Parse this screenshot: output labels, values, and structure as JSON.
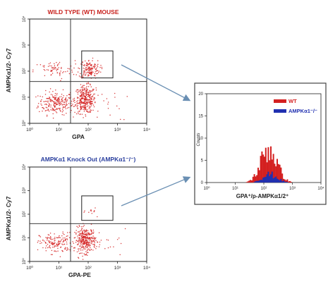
{
  "colors": {
    "wt": "#d42020",
    "ko": "#2030b0",
    "axis": "#222222",
    "arrow": "#6a8fb3",
    "title_wt": "#c8201c",
    "title_ko": "#2a3f9e"
  },
  "chart_data": [
    {
      "type": "scatter",
      "title": "WILD TYPE (WT) MOUSE",
      "xlabel": "GPA",
      "ylabel": "AMPKα1/2- Cy7",
      "xscale": "log",
      "yscale": "log",
      "xlim": [
        1,
        10000
      ],
      "ylim": [
        1,
        10000
      ],
      "x_ticks": [
        "10⁰",
        "10¹",
        "10²",
        "10³",
        "10⁴"
      ],
      "y_ticks": [
        "10⁰",
        "10¹",
        "10²",
        "10³",
        "10⁴"
      ],
      "gate_quadrant": {
        "x": 25,
        "y": 40
      },
      "gate_box": {
        "x": [
          60,
          700
        ],
        "y": [
          55,
          600
        ]
      },
      "clusters": [
        {
          "cx": 8,
          "cy": 6,
          "n": 230,
          "sx": 0.3,
          "sy": 0.22
        },
        {
          "cx": 80,
          "cy": 8,
          "n": 330,
          "sx": 0.18,
          "sy": 0.26
        },
        {
          "cx": 7,
          "cy": 110,
          "n": 70,
          "sx": 0.35,
          "sy": 0.18
        },
        {
          "cx": 110,
          "cy": 120,
          "n": 150,
          "sx": 0.18,
          "sy": 0.18
        },
        {
          "cx": 600,
          "cy": 5,
          "n": 15,
          "sx": 0.3,
          "sy": 0.3
        }
      ]
    },
    {
      "type": "scatter",
      "title": "AMPKα1 Knock Out (AMPKα1⁻/⁻)",
      "xlabel": "GPA-PE",
      "ylabel": "AMPKα1/2- Cy7",
      "xscale": "log",
      "yscale": "log",
      "xlim": [
        1,
        10000
      ],
      "ylim": [
        1,
        10000
      ],
      "x_ticks": [
        "10⁰",
        "10¹",
        "10²",
        "10³",
        "10⁴"
      ],
      "y_ticks": [
        "10⁰",
        "10¹",
        "10²",
        "10³",
        "10⁴"
      ],
      "gate_quadrant": {
        "x": 25,
        "y": 40
      },
      "gate_box": {
        "x": [
          60,
          700
        ],
        "y": [
          55,
          600
        ]
      },
      "clusters": [
        {
          "cx": 8,
          "cy": 6,
          "n": 150,
          "sx": 0.28,
          "sy": 0.22
        },
        {
          "cx": 80,
          "cy": 8,
          "n": 320,
          "sx": 0.18,
          "sy": 0.26
        },
        {
          "cx": 150,
          "cy": 140,
          "n": 12,
          "sx": 0.12,
          "sy": 0.1
        },
        {
          "cx": 600,
          "cy": 5,
          "n": 15,
          "sx": 0.3,
          "sy": 0.3
        }
      ]
    },
    {
      "type": "area",
      "xlabel": "GPA⁺/p-AMPKα1/2⁺",
      "ylabel": "Counts",
      "xscale": "log",
      "xlim": [
        1,
        10000
      ],
      "ylim": [
        0,
        20
      ],
      "x_ticks": [
        "10⁰",
        "10¹",
        "10²",
        "10³",
        "10⁴"
      ],
      "y_ticks": [
        "0",
        "5",
        "10",
        "15",
        "20"
      ],
      "legend": "top-right",
      "series": [
        {
          "name": "WT",
          "color": "#d42020",
          "center": 150,
          "peak": 7.5,
          "width": 0.28
        },
        {
          "name": "AMPKα1⁻/⁻",
          "color": "#2030b0",
          "center": 160,
          "peak": 1.8,
          "width": 0.26
        }
      ]
    }
  ]
}
